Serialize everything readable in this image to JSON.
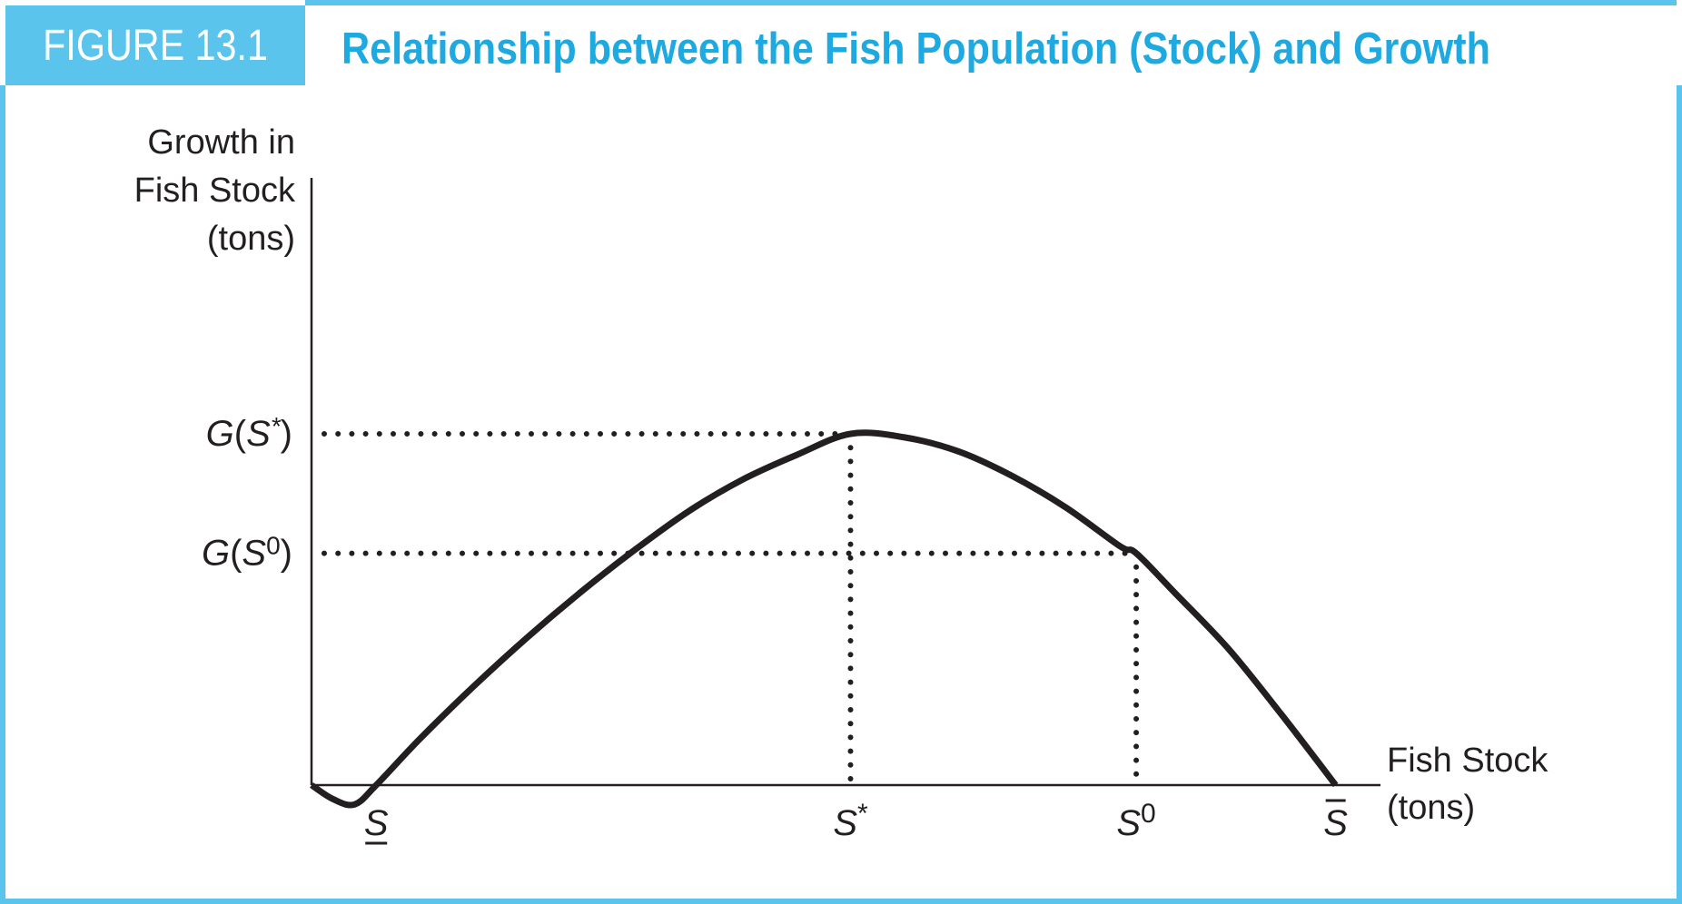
{
  "figure": {
    "label": "FIGURE 13.1",
    "title": "Relationship between the Fish Population (Stock) and Growth"
  },
  "colors": {
    "accent": "#5bc4ec",
    "title": "#1fa9e1",
    "ink": "#231f20"
  },
  "chart_data": {
    "type": "line",
    "title": "Relationship between the Fish Population (Stock) and Growth",
    "ylabel_lines": [
      "Growth in",
      "Fish Stock",
      "(tons)"
    ],
    "xlabel_lines": [
      "Fish Stock",
      "(tons)"
    ],
    "x_ticks": [
      {
        "key": "s_min",
        "base": "S",
        "mark": "underline",
        "x": 0.12
      },
      {
        "key": "s_star",
        "base": "S",
        "sup": "*",
        "x": 1.0
      },
      {
        "key": "s_zero",
        "base": "S",
        "sup": "0",
        "x": 1.53
      },
      {
        "key": "s_max",
        "base": "S",
        "mark": "overline",
        "x": 1.9
      }
    ],
    "y_ticks": [
      {
        "key": "g_star",
        "text": "G(S*)",
        "y": 1.0
      },
      {
        "key": "g_zero",
        "text": "G(S⁰)",
        "y": 0.66
      }
    ],
    "series": [
      {
        "values": [
          [
            0,
            0
          ],
          [
            0.04,
            -0.04
          ],
          [
            0.08,
            -0.055
          ],
          [
            0.12,
            0
          ],
          [
            0.2,
            0.13
          ],
          [
            0.3,
            0.28
          ],
          [
            0.4,
            0.42
          ],
          [
            0.5,
            0.55
          ],
          [
            0.6,
            0.67
          ],
          [
            0.7,
            0.78
          ],
          [
            0.8,
            0.87
          ],
          [
            0.9,
            0.94
          ],
          [
            1.0,
            1.0
          ],
          [
            1.1,
            0.99
          ],
          [
            1.2,
            0.95
          ],
          [
            1.3,
            0.88
          ],
          [
            1.4,
            0.79
          ],
          [
            1.5,
            0.68
          ],
          [
            1.53,
            0.66
          ],
          [
            1.6,
            0.55
          ],
          [
            1.7,
            0.39
          ],
          [
            1.8,
            0.2
          ],
          [
            1.9,
            0
          ]
        ]
      }
    ],
    "guides": [
      {
        "from": "g_star",
        "to": "s_star"
      },
      {
        "from": "g_zero",
        "to": "s_zero"
      }
    ],
    "xlim": [
      0,
      2.0
    ],
    "ylim": [
      -0.1,
      1.0
    ],
    "grid": false
  }
}
